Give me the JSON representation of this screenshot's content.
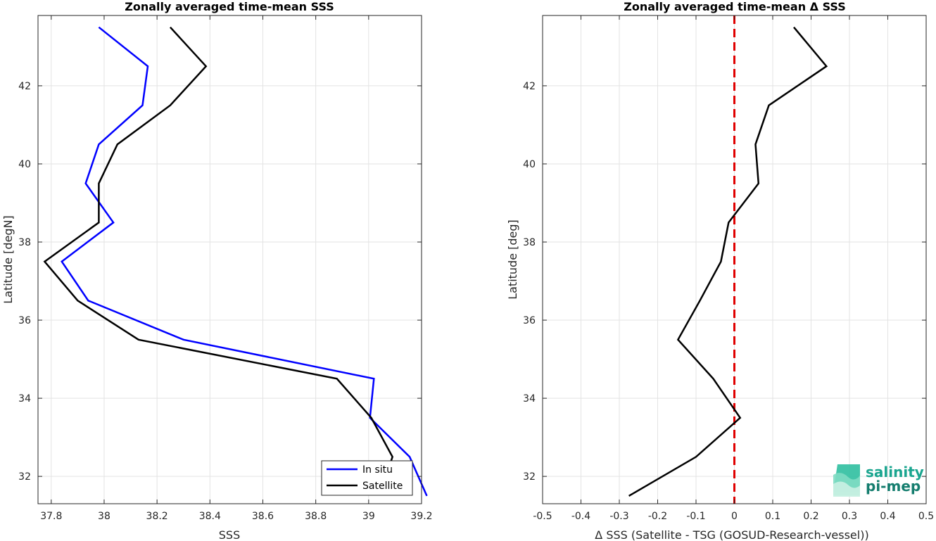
{
  "chart_data": [
    {
      "type": "line",
      "title": "Zonally averaged time-mean SSS",
      "xlabel": "SSS",
      "ylabel": "Latitude [degN]",
      "xlim": [
        37.75,
        39.2
      ],
      "ylim": [
        31.3,
        43.8
      ],
      "xticks": [
        37.8,
        38,
        38.2,
        38.4,
        38.6,
        38.8,
        39,
        39.2
      ],
      "xtick_labels": [
        "37.8",
        "38",
        "38.2",
        "38.4",
        "38.6",
        "38.8",
        "39",
        "39.2"
      ],
      "yticks": [
        32,
        34,
        36,
        38,
        40,
        42
      ],
      "ytick_labels": [
        "32",
        "34",
        "36",
        "38",
        "40",
        "42"
      ],
      "grid": true,
      "legend_position": "bottom-right",
      "series": [
        {
          "name": "In situ",
          "color": "#0000ff",
          "points": [
            [
              37.98,
              43.5
            ],
            [
              38.165,
              42.5
            ],
            [
              38.145,
              41.5
            ],
            [
              37.98,
              40.5
            ],
            [
              37.93,
              39.5
            ],
            [
              38.035,
              38.5
            ],
            [
              37.84,
              37.5
            ],
            [
              37.94,
              36.5
            ],
            [
              38.3,
              35.5
            ],
            [
              39.02,
              34.5
            ],
            [
              39.005,
              33.5
            ],
            [
              39.155,
              32.5
            ],
            [
              39.22,
              31.5
            ]
          ]
        },
        {
          "name": "Satellite",
          "color": "#000000",
          "points": [
            [
              38.25,
              43.5
            ],
            [
              38.385,
              42.5
            ],
            [
              38.25,
              41.5
            ],
            [
              38.05,
              40.5
            ],
            [
              37.98,
              39.5
            ],
            [
              37.98,
              38.5
            ],
            [
              37.775,
              37.5
            ],
            [
              37.9,
              36.5
            ],
            [
              38.13,
              35.5
            ],
            [
              38.88,
              34.5
            ],
            [
              39.01,
              33.5
            ],
            [
              39.09,
              32.5
            ],
            [
              39.08,
              32.3
            ]
          ]
        }
      ]
    },
    {
      "type": "line",
      "title": "Zonally averaged time-mean Δ SSS",
      "xlabel": "Δ SSS (Satellite - TSG (GOSUD-Research-vessel))",
      "ylabel": "Latitude [deg]",
      "xlim": [
        -0.5,
        0.5
      ],
      "ylim": [
        31.3,
        43.8
      ],
      "xticks": [
        -0.5,
        -0.4,
        -0.3,
        -0.2,
        -0.1,
        0,
        0.1,
        0.2,
        0.3,
        0.4,
        0.5
      ],
      "xtick_labels": [
        "-0.5",
        "-0.4",
        "-0.3",
        "-0.2",
        "-0.1",
        "0",
        "0.1",
        "0.2",
        "0.3",
        "0.4",
        "0.5"
      ],
      "yticks": [
        32,
        34,
        36,
        38,
        40,
        42
      ],
      "ytick_labels": [
        "32",
        "34",
        "36",
        "38",
        "40",
        "42"
      ],
      "grid": true,
      "reference_line": {
        "x": 0,
        "color": "#e00000",
        "style": "dashed"
      },
      "series": [
        {
          "color": "#000000",
          "points": [
            [
              0.155,
              43.5
            ],
            [
              0.24,
              42.5
            ],
            [
              0.09,
              41.5
            ],
            [
              0.055,
              40.5
            ],
            [
              0.063,
              39.5
            ],
            [
              -0.015,
              38.5
            ],
            [
              -0.035,
              37.5
            ],
            [
              -0.09,
              36.5
            ],
            [
              -0.147,
              35.5
            ],
            [
              -0.055,
              34.5
            ],
            [
              0.015,
              33.5
            ],
            [
              -0.1,
              32.5
            ],
            [
              -0.275,
              31.5
            ]
          ]
        }
      ]
    }
  ],
  "logo": {
    "line1": "salinity",
    "line2": "pi-mep"
  }
}
